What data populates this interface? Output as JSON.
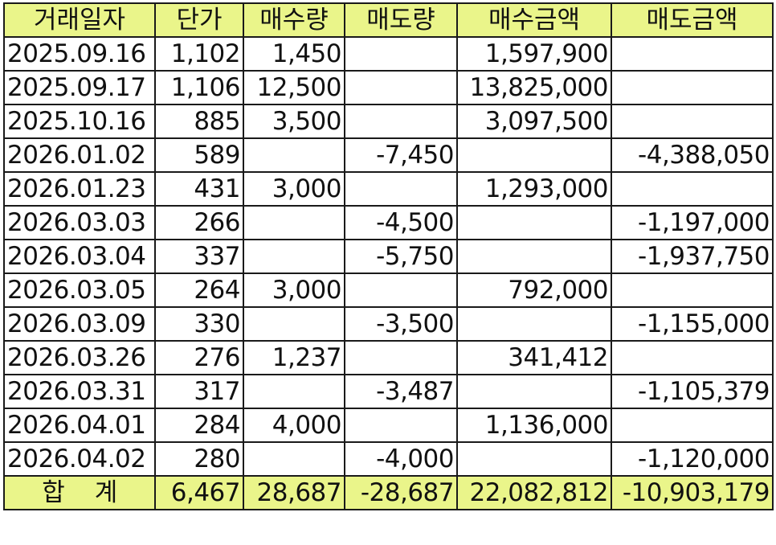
{
  "table": {
    "headers": [
      "거래일자",
      "단가",
      "매수량",
      "매도량",
      "매수금액",
      "매도금액"
    ],
    "rows": [
      [
        "2025.09.16",
        "1,102",
        "1,450",
        "",
        "1,597,900",
        ""
      ],
      [
        "2025.09.17",
        "1,106",
        "12,500",
        "",
        "13,825,000",
        ""
      ],
      [
        "2025.10.16",
        "885",
        "3,500",
        "",
        "3,097,500",
        ""
      ],
      [
        "2026.01.02",
        "589",
        "",
        "-7,450",
        "",
        "-4,388,050"
      ],
      [
        "2026.01.23",
        "431",
        "3,000",
        "",
        "1,293,000",
        ""
      ],
      [
        "2026.03.03",
        "266",
        "",
        "-4,500",
        "",
        "-1,197,000"
      ],
      [
        "2026.03.04",
        "337",
        "",
        "-5,750",
        "",
        "-1,937,750"
      ],
      [
        "2026.03.05",
        "264",
        "3,000",
        "",
        "792,000",
        ""
      ],
      [
        "2026.03.09",
        "330",
        "",
        "-3,500",
        "",
        "-1,155,000"
      ],
      [
        "2026.03.26",
        "276",
        "1,237",
        "",
        "341,412",
        ""
      ],
      [
        "2026.03.31",
        "317",
        "",
        "-3,487",
        "",
        "-1,105,379"
      ],
      [
        "2026.04.01",
        "284",
        "4,000",
        "",
        "1,136,000",
        ""
      ],
      [
        "2026.04.02",
        "280",
        "",
        "-4,000",
        "",
        "-1,120,000"
      ]
    ],
    "total": {
      "label": "합    계",
      "values": [
        "6,467",
        "28,687",
        "-28,687",
        "22,082,812",
        "-10,903,179"
      ]
    },
    "header_color": "#eaf58a"
  }
}
